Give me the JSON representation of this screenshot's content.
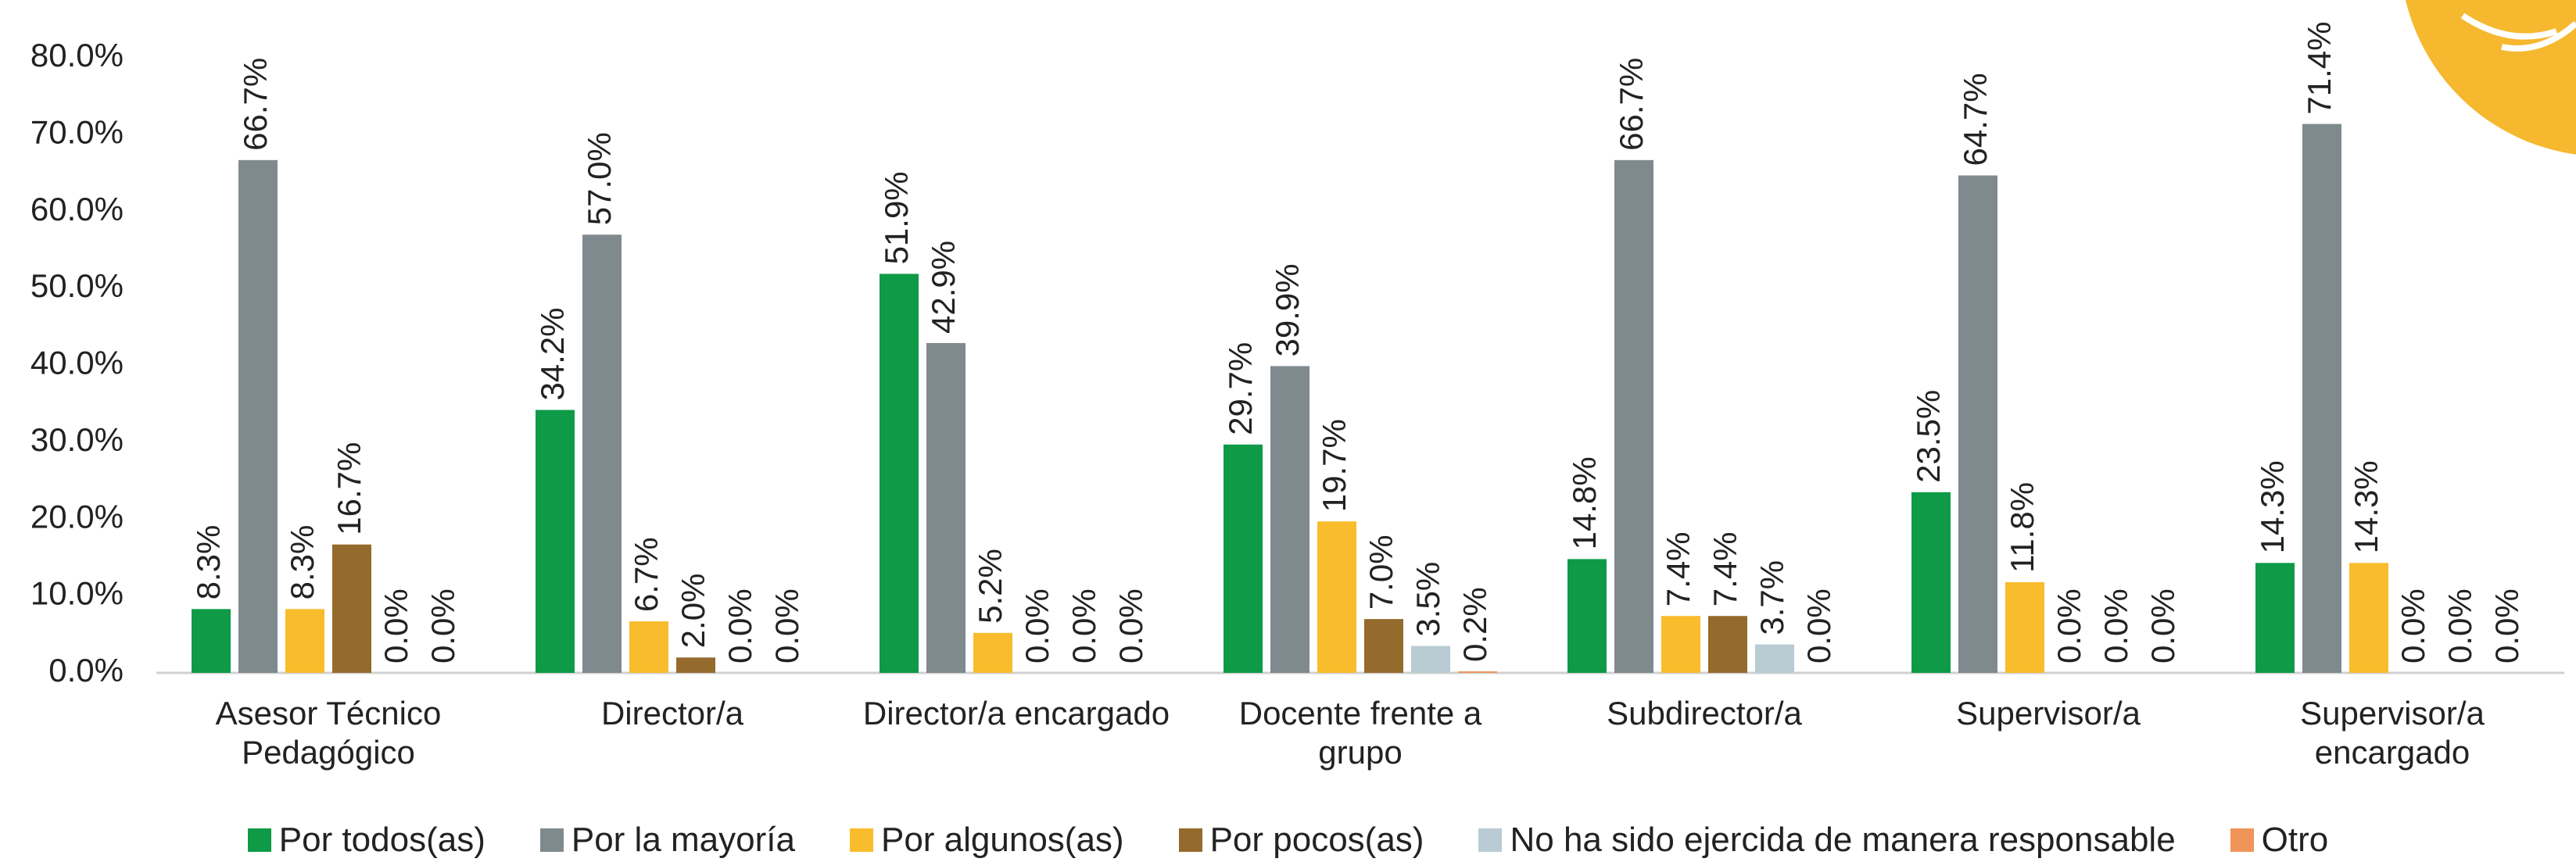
{
  "chart_data": {
    "type": "bar",
    "categories": [
      "Asesor Técnico Pedagógico",
      "Director/a",
      "Director/a encargado",
      "Docente frente a grupo",
      "Subdirector/a",
      "Supervisor/a",
      "Supervisor/a encargado"
    ],
    "series": [
      {
        "name": "Por todos(as)",
        "color": "#0e9a47",
        "values": [
          8.3,
          34.2,
          51.9,
          29.7,
          14.8,
          23.5,
          14.3
        ],
        "value_labels": [
          "8.3%",
          "34.2%",
          "51.9%",
          "29.7%",
          "14.8%",
          "23.5%",
          "14.3%"
        ]
      },
      {
        "name": "Por la mayoría",
        "color": "#7f8a8f",
        "values": [
          66.7,
          57.0,
          42.9,
          39.9,
          66.7,
          64.7,
          71.4
        ],
        "value_labels": [
          "66.7%",
          "57.0%",
          "42.9%",
          "39.9%",
          "66.7%",
          "64.7%",
          "71.4%"
        ]
      },
      {
        "name": "Por algunos(as)",
        "color": "#f9bc2c",
        "values": [
          8.3,
          6.7,
          5.2,
          19.7,
          7.4,
          11.8,
          14.3
        ],
        "value_labels": [
          "8.3%",
          "6.7%",
          "5.2%",
          "19.7%",
          "7.4%",
          "11.8%",
          "14.3%"
        ]
      },
      {
        "name": "Por pocos(as)",
        "color": "#946a2d",
        "values": [
          16.7,
          2.0,
          0.0,
          7.0,
          7.4,
          0.0,
          0.0
        ],
        "value_labels": [
          "16.7%",
          "2.0%",
          "0.0%",
          "7.0%",
          "7.4%",
          "0.0%",
          "0.0%"
        ]
      },
      {
        "name": "No ha sido ejercida de manera responsable",
        "color": "#b9cbd3",
        "values": [
          0.0,
          0.0,
          0.0,
          3.5,
          3.7,
          0.0,
          0.0
        ],
        "value_labels": [
          "0.0%",
          "0.0%",
          "0.0%",
          "3.5%",
          "3.7%",
          "0.0%",
          "0.0%"
        ]
      },
      {
        "name": "Otro",
        "color": "#f0955a",
        "values": [
          0.0,
          0.0,
          0.0,
          0.2,
          0.0,
          0.0,
          0.0
        ],
        "value_labels": [
          "0.0%",
          "0.0%",
          "0.0%",
          "0.2%",
          "0.0%",
          "0.0%",
          "0.0%"
        ]
      }
    ],
    "ylim": [
      0,
      80
    ],
    "yticks": [
      {
        "value": 0,
        "label": "0.0%"
      },
      {
        "value": 10,
        "label": "10.0%"
      },
      {
        "value": 20,
        "label": "20.0%"
      },
      {
        "value": 30,
        "label": "30.0%"
      },
      {
        "value": 40,
        "label": "40.0%"
      },
      {
        "value": 50,
        "label": "50.0%"
      },
      {
        "value": 60,
        "label": "60.0%"
      },
      {
        "value": 70,
        "label": "70.0%"
      },
      {
        "value": 80,
        "label": "80.0%"
      }
    ],
    "grid": false,
    "legend": "bottom"
  }
}
